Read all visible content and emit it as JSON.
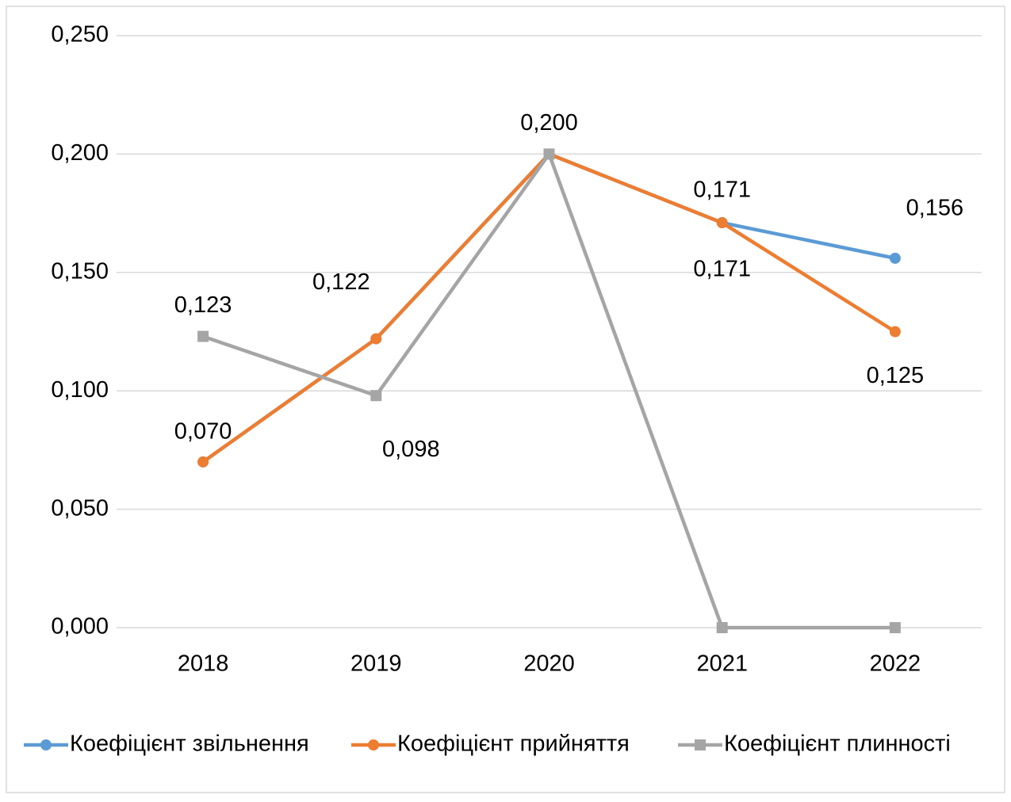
{
  "chart_data": {
    "type": "line",
    "categories": [
      "2018",
      "2019",
      "2020",
      "2021",
      "2022"
    ],
    "series": [
      {
        "name": "Коефіцієнт звільнення",
        "color": "#5b9bd5",
        "marker": "circle",
        "values": [
          0.07,
          0.122,
          0.2,
          0.171,
          0.156
        ],
        "value_labels": [
          "0,070",
          "0,122",
          "0,200",
          "0,171",
          "0,156"
        ]
      },
      {
        "name": "Коефіцієнт прийняття",
        "color": "#ed7d31",
        "marker": "circle",
        "values": [
          0.07,
          0.122,
          0.2,
          0.171,
          0.125
        ],
        "value_labels": [
          null,
          null,
          null,
          "0,171",
          "0,125"
        ]
      },
      {
        "name": "Коефіцієнт плинності",
        "color": "#a5a5a5",
        "marker": "square",
        "values": [
          0.123,
          0.098,
          0.2,
          0.0,
          0.0
        ],
        "value_labels": [
          "0,123",
          "0,098",
          null,
          null,
          null
        ]
      }
    ],
    "ylim": [
      0,
      0.25
    ],
    "yticks": [
      {
        "value": 0,
        "label": "0,000"
      },
      {
        "value": 0.05,
        "label": "0,050"
      },
      {
        "value": 0.1,
        "label": "0,100"
      },
      {
        "value": 0.15,
        "label": "0,150"
      },
      {
        "value": 0.2,
        "label": "0,200"
      },
      {
        "value": 0.25,
        "label": "0,250"
      }
    ],
    "grid": true,
    "legend": "bottom"
  }
}
